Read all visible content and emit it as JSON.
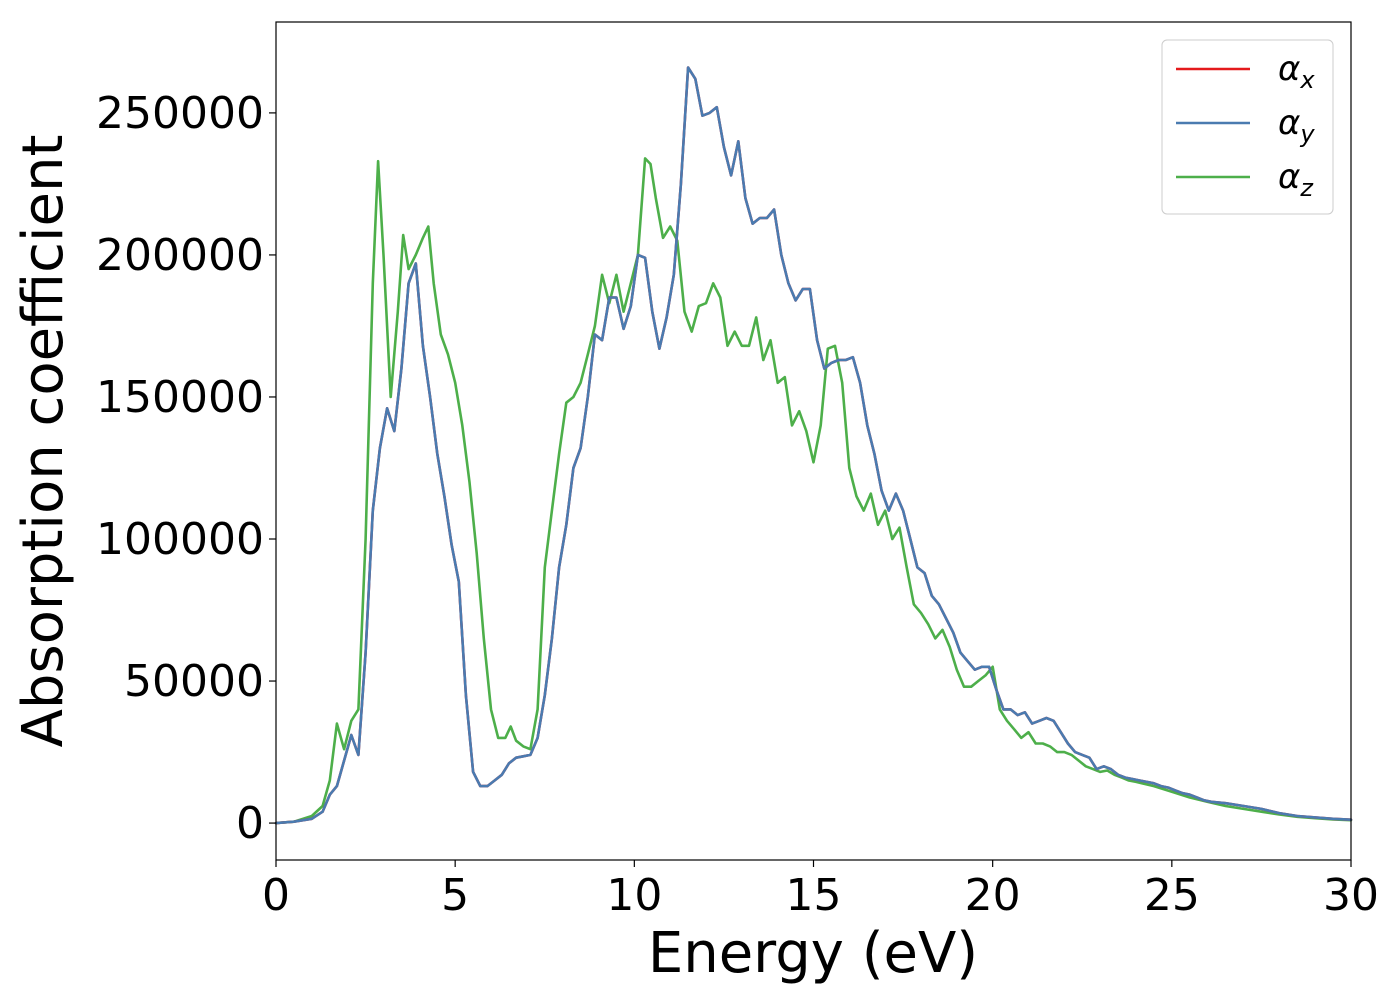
{
  "chart_data": {
    "type": "line",
    "xlabel": "Energy (eV)",
    "ylabel": "Absorption coefficient",
    "xlim": [
      0,
      30
    ],
    "ylim": [
      -13000,
      282000
    ],
    "xticks": [
      0,
      5,
      10,
      15,
      20,
      25,
      30
    ],
    "xtick_labels": [
      "0",
      "5",
      "10",
      "15",
      "20",
      "25",
      "30"
    ],
    "yticks": [
      0,
      50000,
      100000,
      150000,
      200000,
      250000
    ],
    "ytick_labels": [
      "0",
      "50000",
      "100000",
      "150000",
      "200000",
      "250000"
    ],
    "grid": false,
    "legend_position": "top-right",
    "series": [
      {
        "name": "α_x",
        "symbol": "α",
        "subscript": "x",
        "color": "#e41a1c",
        "x": [
          0,
          0.5,
          1.0,
          1.3,
          1.5,
          1.7,
          1.9,
          2.1,
          2.3,
          2.5,
          2.7,
          2.9,
          3.1,
          3.3,
          3.5,
          3.7,
          3.9,
          4.1,
          4.3,
          4.5,
          4.7,
          4.9,
          5.1,
          5.3,
          5.5,
          5.7,
          5.9,
          6.1,
          6.3,
          6.5,
          6.7,
          6.9,
          7.1,
          7.3,
          7.5,
          7.7,
          7.9,
          8.1,
          8.3,
          8.5,
          8.7,
          8.9,
          9.1,
          9.3,
          9.5,
          9.7,
          9.9,
          10.1,
          10.3,
          10.5,
          10.7,
          10.9,
          11.1,
          11.3,
          11.5,
          11.7,
          11.9,
          12.1,
          12.3,
          12.5,
          12.7,
          12.9,
          13.1,
          13.3,
          13.5,
          13.7,
          13.9,
          14.1,
          14.3,
          14.5,
          14.7,
          14.9,
          15.1,
          15.3,
          15.5,
          15.7,
          15.9,
          16.1,
          16.3,
          16.5,
          16.7,
          16.9,
          17.1,
          17.3,
          17.5,
          17.7,
          17.9,
          18.1,
          18.3,
          18.5,
          18.7,
          18.9,
          19.1,
          19.3,
          19.5,
          19.7,
          19.9,
          20.1,
          20.3,
          20.5,
          20.7,
          20.9,
          21.1,
          21.3,
          21.5,
          21.7,
          21.9,
          22.1,
          22.3,
          22.5,
          22.7,
          22.9,
          23.1,
          23.3,
          23.5,
          23.7,
          23.9,
          24.1,
          24.3,
          24.5,
          24.7,
          24.9,
          25.1,
          25.3,
          25.5,
          25.7,
          25.9,
          26.1,
          26.5,
          27.0,
          27.5,
          28.0,
          28.5,
          29.0,
          29.5,
          30.0
        ],
        "y": [
          0,
          500,
          1500,
          4000,
          10000,
          13000,
          22000,
          31000,
          24000,
          60000,
          110000,
          132000,
          146000,
          138000,
          160000,
          190000,
          197000,
          168000,
          150000,
          130000,
          115000,
          98000,
          85000,
          45000,
          18000,
          13000,
          13000,
          15000,
          17000,
          21000,
          23000,
          23500,
          24000,
          30000,
          45000,
          65000,
          90000,
          105000,
          125000,
          132000,
          150000,
          172000,
          170000,
          185000,
          185000,
          174000,
          182000,
          200000,
          199000,
          180000,
          167000,
          178000,
          193000,
          225000,
          266000,
          262000,
          249000,
          250000,
          252000,
          238000,
          228000,
          240000,
          220000,
          211000,
          213000,
          213000,
          216000,
          200000,
          190000,
          184000,
          188000,
          188000,
          170000,
          160000,
          162000,
          163000,
          163000,
          164000,
          155000,
          140000,
          130000,
          117000,
          110000,
          116000,
          110000,
          100000,
          90000,
          88000,
          80000,
          77000,
          72000,
          67000,
          60000,
          57000,
          54000,
          55000,
          55000,
          47000,
          40000,
          40000,
          38000,
          39000,
          35000,
          36000,
          37000,
          36000,
          32000,
          28000,
          25000,
          24000,
          23000,
          19000,
          20000,
          19000,
          17000,
          16000,
          15500,
          15000,
          14500,
          14000,
          13000,
          12500,
          11500,
          10500,
          10000,
          9000,
          8000,
          7500,
          7000,
          6000,
          5000,
          3500,
          2500,
          2000,
          1500,
          1200
        ]
      },
      {
        "name": "α_y",
        "symbol": "α",
        "subscript": "y",
        "color": "#4a7bb0",
        "x": [
          0,
          0.5,
          1.0,
          1.3,
          1.5,
          1.7,
          1.9,
          2.1,
          2.3,
          2.5,
          2.7,
          2.9,
          3.1,
          3.3,
          3.5,
          3.7,
          3.9,
          4.1,
          4.3,
          4.5,
          4.7,
          4.9,
          5.1,
          5.3,
          5.5,
          5.7,
          5.9,
          6.1,
          6.3,
          6.5,
          6.7,
          6.9,
          7.1,
          7.3,
          7.5,
          7.7,
          7.9,
          8.1,
          8.3,
          8.5,
          8.7,
          8.9,
          9.1,
          9.3,
          9.5,
          9.7,
          9.9,
          10.1,
          10.3,
          10.5,
          10.7,
          10.9,
          11.1,
          11.3,
          11.5,
          11.7,
          11.9,
          12.1,
          12.3,
          12.5,
          12.7,
          12.9,
          13.1,
          13.3,
          13.5,
          13.7,
          13.9,
          14.1,
          14.3,
          14.5,
          14.7,
          14.9,
          15.1,
          15.3,
          15.5,
          15.7,
          15.9,
          16.1,
          16.3,
          16.5,
          16.7,
          16.9,
          17.1,
          17.3,
          17.5,
          17.7,
          17.9,
          18.1,
          18.3,
          18.5,
          18.7,
          18.9,
          19.1,
          19.3,
          19.5,
          19.7,
          19.9,
          20.1,
          20.3,
          20.5,
          20.7,
          20.9,
          21.1,
          21.3,
          21.5,
          21.7,
          21.9,
          22.1,
          22.3,
          22.5,
          22.7,
          22.9,
          23.1,
          23.3,
          23.5,
          23.7,
          23.9,
          24.1,
          24.3,
          24.5,
          24.7,
          24.9,
          25.1,
          25.3,
          25.5,
          25.7,
          25.9,
          26.1,
          26.5,
          27.0,
          27.5,
          28.0,
          28.5,
          29.0,
          29.5,
          30.0
        ],
        "y": [
          0,
          500,
          1500,
          4000,
          10000,
          13000,
          22000,
          31000,
          24000,
          60000,
          110000,
          132000,
          146000,
          138000,
          160000,
          190000,
          197000,
          168000,
          150000,
          130000,
          115000,
          98000,
          85000,
          45000,
          18000,
          13000,
          13000,
          15000,
          17000,
          21000,
          23000,
          23500,
          24000,
          30000,
          45000,
          65000,
          90000,
          105000,
          125000,
          132000,
          150000,
          172000,
          170000,
          185000,
          185000,
          174000,
          182000,
          200000,
          199000,
          180000,
          167000,
          178000,
          193000,
          225000,
          266000,
          262000,
          249000,
          250000,
          252000,
          238000,
          228000,
          240000,
          220000,
          211000,
          213000,
          213000,
          216000,
          200000,
          190000,
          184000,
          188000,
          188000,
          170000,
          160000,
          162000,
          163000,
          163000,
          164000,
          155000,
          140000,
          130000,
          117000,
          110000,
          116000,
          110000,
          100000,
          90000,
          88000,
          80000,
          77000,
          72000,
          67000,
          60000,
          57000,
          54000,
          55000,
          55000,
          47000,
          40000,
          40000,
          38000,
          39000,
          35000,
          36000,
          37000,
          36000,
          32000,
          28000,
          25000,
          24000,
          23000,
          19000,
          20000,
          19000,
          17000,
          16000,
          15500,
          15000,
          14500,
          14000,
          13000,
          12500,
          11500,
          10500,
          10000,
          9000,
          8000,
          7500,
          7000,
          6000,
          5000,
          3500,
          2500,
          2000,
          1500,
          1200
        ]
      },
      {
        "name": "α_z",
        "symbol": "α",
        "subscript": "z",
        "color": "#4daf4a",
        "x": [
          0,
          0.5,
          1.0,
          1.3,
          1.5,
          1.7,
          1.9,
          2.1,
          2.3,
          2.5,
          2.7,
          2.85,
          3.0,
          3.2,
          3.4,
          3.55,
          3.7,
          3.9,
          4.1,
          4.25,
          4.4,
          4.6,
          4.8,
          5.0,
          5.2,
          5.4,
          5.6,
          5.8,
          6.0,
          6.2,
          6.4,
          6.55,
          6.7,
          6.9,
          7.1,
          7.3,
          7.5,
          7.7,
          7.9,
          8.1,
          8.3,
          8.5,
          8.7,
          8.9,
          9.1,
          9.3,
          9.5,
          9.7,
          9.9,
          10.1,
          10.3,
          10.45,
          10.6,
          10.8,
          11.0,
          11.2,
          11.4,
          11.6,
          11.8,
          12.0,
          12.2,
          12.4,
          12.6,
          12.8,
          13.0,
          13.2,
          13.4,
          13.6,
          13.8,
          14.0,
          14.2,
          14.4,
          14.6,
          14.8,
          15.0,
          15.2,
          15.4,
          15.6,
          15.8,
          16.0,
          16.2,
          16.4,
          16.6,
          16.8,
          17.0,
          17.2,
          17.4,
          17.6,
          17.8,
          18.0,
          18.2,
          18.4,
          18.6,
          18.8,
          19.0,
          19.2,
          19.4,
          19.6,
          19.8,
          20.0,
          20.2,
          20.4,
          20.6,
          20.8,
          21.0,
          21.2,
          21.4,
          21.6,
          21.8,
          22.0,
          22.2,
          22.4,
          22.6,
          22.8,
          23.0,
          23.2,
          23.4,
          23.6,
          23.8,
          24.0,
          24.5,
          25.0,
          25.5,
          26.0,
          26.5,
          27.0,
          27.5,
          28.0,
          28.5,
          29.0,
          29.5,
          30.0
        ],
        "y": [
          0,
          500,
          2500,
          6000,
          15000,
          35000,
          26000,
          36000,
          40000,
          100000,
          190000,
          233000,
          200000,
          150000,
          180000,
          207000,
          195000,
          200000,
          206000,
          210000,
          190000,
          172000,
          165000,
          155000,
          140000,
          120000,
          95000,
          65000,
          40000,
          30000,
          30000,
          34000,
          29000,
          27000,
          26000,
          40000,
          90000,
          110000,
          130000,
          148000,
          150000,
          155000,
          165000,
          175000,
          193000,
          183000,
          193000,
          180000,
          190000,
          200000,
          234000,
          232000,
          220000,
          206000,
          210000,
          205000,
          180000,
          173000,
          182000,
          183000,
          190000,
          185000,
          168000,
          173000,
          168000,
          168000,
          178000,
          163000,
          170000,
          155000,
          157000,
          140000,
          145000,
          138000,
          127000,
          140000,
          167000,
          168000,
          155000,
          125000,
          115000,
          110000,
          116000,
          105000,
          110000,
          100000,
          104000,
          90000,
          77000,
          74000,
          70000,
          65000,
          68000,
          62000,
          54000,
          48000,
          48000,
          50000,
          52000,
          55000,
          40000,
          36000,
          33000,
          30000,
          32000,
          28000,
          28000,
          27000,
          25000,
          25000,
          24000,
          22000,
          20000,
          19000,
          18000,
          18500,
          17000,
          16000,
          15000,
          14500,
          13000,
          11000,
          9000,
          7500,
          6000,
          5000,
          4000,
          3000,
          2200,
          1700,
          1300,
          1000
        ]
      }
    ]
  }
}
